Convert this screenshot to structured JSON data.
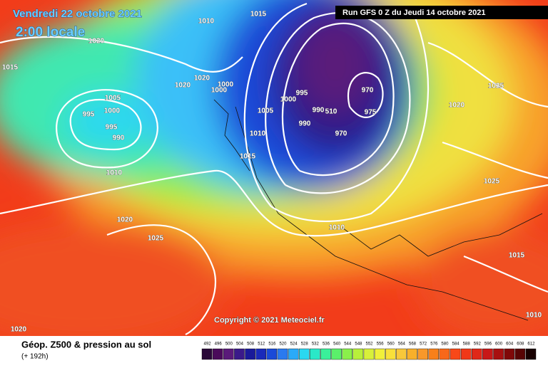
{
  "header": {
    "title": "Vendredi 22 octobre 2021",
    "subtitle": "2:00 locale",
    "run": "Run GFS 0 Z du Jeudi 14 octobre 2021"
  },
  "isobar_labels": [
    "1015",
    "1015",
    "1020",
    "1005",
    "1000",
    "995",
    "995",
    "990",
    "1010",
    "1020",
    "1020",
    "1000",
    "1000",
    "1005",
    "1010",
    "1015",
    "995",
    "1000",
    "990",
    "510",
    "990",
    "970",
    "975",
    "970",
    "1025",
    "1020",
    "1025",
    "1020",
    "1025",
    "1010",
    "1015",
    "1010",
    "1020",
    "1010"
  ],
  "footer": {
    "copyright": "Copyright © 2021 Meteociel.fr",
    "legend_title": "Géop. Z500 & pression au sol",
    "forecast_hour": "(+ 192h)"
  },
  "scale": {
    "labels": [
      "492",
      "496",
      "500",
      "504",
      "508",
      "512",
      "516",
      "520",
      "524",
      "528",
      "532",
      "536",
      "540",
      "544",
      "548",
      "552",
      "556",
      "560",
      "564",
      "568",
      "572",
      "576",
      "580",
      "584",
      "588",
      "592",
      "596",
      "600",
      "604",
      "608",
      "612"
    ],
    "colors": [
      "#2a0838",
      "#4a0a5a",
      "#5a1a7a",
      "#3a1a8a",
      "#1a1a9a",
      "#1a2aba",
      "#1a4ad8",
      "#2a7aef",
      "#2aaaf8",
      "#2ad8f0",
      "#2ae8c8",
      "#3af09a",
      "#5af06a",
      "#8af04a",
      "#b8f03a",
      "#d8f03a",
      "#f0f03a",
      "#f8e03a",
      "#f8c83a",
      "#f8b02a",
      "#f8982a",
      "#f8801a",
      "#f8681a",
      "#f84818",
      "#f03818",
      "#e02818",
      "#c81818",
      "#a81010",
      "#800808",
      "#580404",
      "#180000"
    ]
  }
}
